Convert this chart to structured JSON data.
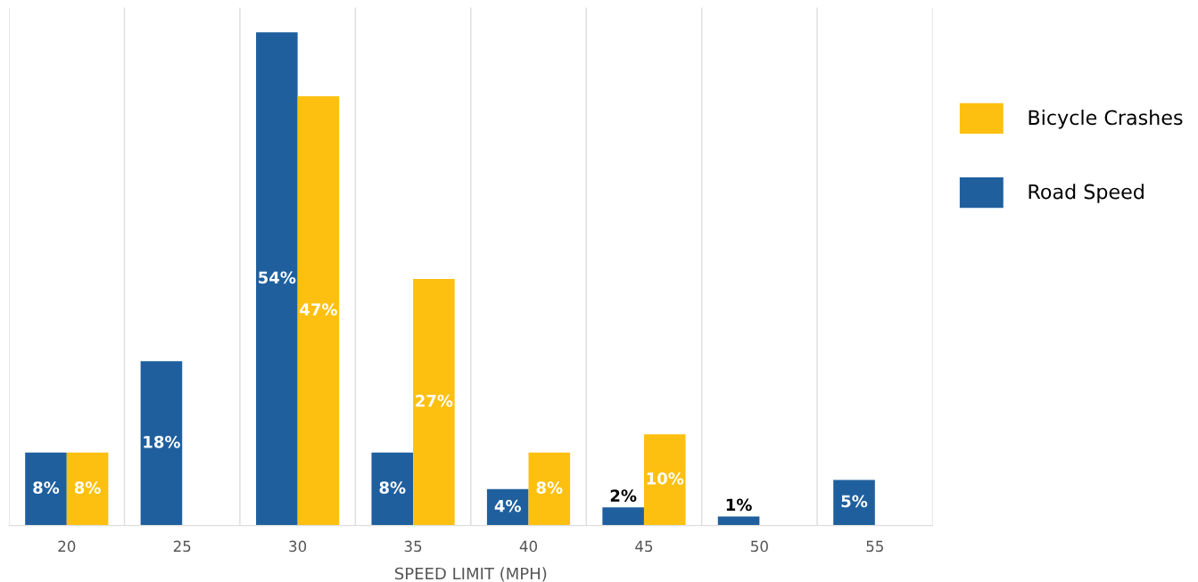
{
  "chart_data": {
    "type": "bar",
    "xlabel": "SPEED LIMIT (MPH)",
    "categories": [
      "20",
      "25",
      "30",
      "35",
      "40",
      "45",
      "50",
      "55"
    ],
    "series": [
      {
        "name": "Road Speed",
        "color": "#1f5f9e",
        "values": [
          8,
          18,
          54,
          8,
          4,
          2,
          1,
          5
        ],
        "value_labels": [
          "8%",
          "18%",
          "54%",
          "8%",
          "4%",
          "2%",
          "1%",
          "5%"
        ]
      },
      {
        "name": "Bicycle Crashes",
        "color": "#fdc010",
        "values": [
          8,
          null,
          47,
          27,
          8,
          10,
          null,
          null
        ],
        "value_labels": [
          "8%",
          null,
          "47%",
          "27%",
          "8%",
          "10%",
          null,
          null
        ]
      }
    ],
    "grid": "x",
    "legend": "right",
    "tick_labels": "x"
  }
}
